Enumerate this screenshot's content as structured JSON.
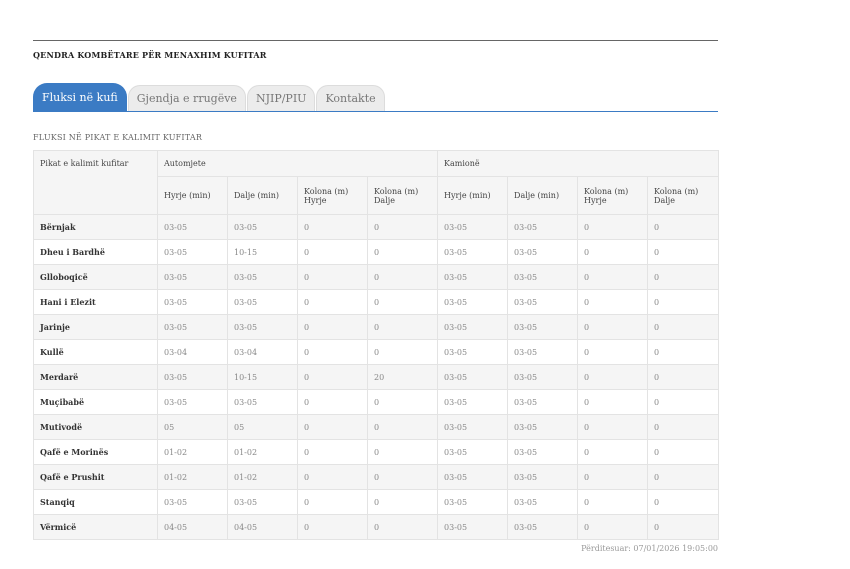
{
  "header": {
    "title": "QENDRA KOMBËTARE PËR MENAXHIM KUFITAR"
  },
  "tabs": [
    {
      "label": "Fluksi në kufi",
      "active": true
    },
    {
      "label": "Gjendja e rrugëve",
      "active": false
    },
    {
      "label": "NJIP/PIU",
      "active": false
    },
    {
      "label": "Kontakte",
      "active": false
    }
  ],
  "section_title": "FLUKSI NË PIKAT E KALIMIT KUFITAR",
  "table": {
    "place_header": "Pikat e kalimit kufitar",
    "group_cars": "Automjete",
    "group_trucks": "Kamionë",
    "col_entry": "Hyrje (min)",
    "col_exit": "Dalje (min)",
    "col_queue_entry": "Kolona (m) Hyrje",
    "col_queue_exit": "Kolona (m) Dalje",
    "rows": [
      {
        "place": "Bërnjak",
        "cars": [
          "03-05",
          "03-05",
          "0",
          "0"
        ],
        "trucks": [
          "03-05",
          "03-05",
          "0",
          "0"
        ]
      },
      {
        "place": "Dheu i Bardhë",
        "cars": [
          "03-05",
          "10-15",
          "0",
          "0"
        ],
        "trucks": [
          "03-05",
          "03-05",
          "0",
          "0"
        ]
      },
      {
        "place": "Glloboqicë",
        "cars": [
          "03-05",
          "03-05",
          "0",
          "0"
        ],
        "trucks": [
          "03-05",
          "03-05",
          "0",
          "0"
        ]
      },
      {
        "place": "Hani i Elezit",
        "cars": [
          "03-05",
          "03-05",
          "0",
          "0"
        ],
        "trucks": [
          "03-05",
          "03-05",
          "0",
          "0"
        ]
      },
      {
        "place": "Jarinje",
        "cars": [
          "03-05",
          "03-05",
          "0",
          "0"
        ],
        "trucks": [
          "03-05",
          "03-05",
          "0",
          "0"
        ]
      },
      {
        "place": "Kullë",
        "cars": [
          "03-04",
          "03-04",
          "0",
          "0"
        ],
        "trucks": [
          "03-05",
          "03-05",
          "0",
          "0"
        ]
      },
      {
        "place": "Merdarë",
        "cars": [
          "03-05",
          "10-15",
          "0",
          "20"
        ],
        "trucks": [
          "03-05",
          "03-05",
          "0",
          "0"
        ]
      },
      {
        "place": "Muçibabë",
        "cars": [
          "03-05",
          "03-05",
          "0",
          "0"
        ],
        "trucks": [
          "03-05",
          "03-05",
          "0",
          "0"
        ]
      },
      {
        "place": "Mutivodë",
        "cars": [
          "05",
          "05",
          "0",
          "0"
        ],
        "trucks": [
          "03-05",
          "03-05",
          "0",
          "0"
        ]
      },
      {
        "place": "Qafë e Morinës",
        "cars": [
          "01-02",
          "01-02",
          "0",
          "0"
        ],
        "trucks": [
          "03-05",
          "03-05",
          "0",
          "0"
        ]
      },
      {
        "place": "Qafë e Prushit",
        "cars": [
          "01-02",
          "01-02",
          "0",
          "0"
        ],
        "trucks": [
          "03-05",
          "03-05",
          "0",
          "0"
        ]
      },
      {
        "place": "Stanqiq",
        "cars": [
          "03-05",
          "03-05",
          "0",
          "0"
        ],
        "trucks": [
          "03-05",
          "03-05",
          "0",
          "0"
        ]
      },
      {
        "place": "Vërmicë",
        "cars": [
          "04-05",
          "04-05",
          "0",
          "0"
        ],
        "trucks": [
          "03-05",
          "03-05",
          "0",
          "0"
        ]
      }
    ]
  },
  "updated": "Përditesuar: 07/01/2026 19:05:00",
  "colors": {
    "accent": "#3b7bc4",
    "tab_inactive": "#ececec"
  }
}
